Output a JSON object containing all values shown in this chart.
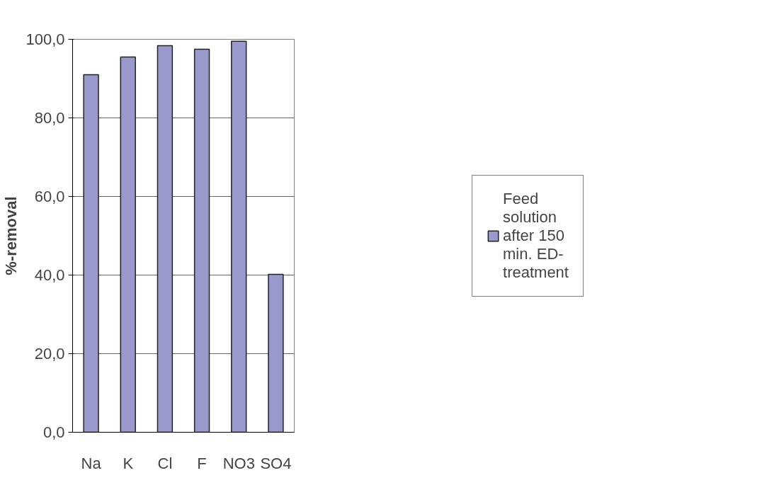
{
  "chart_data": {
    "type": "bar",
    "ylabel": "%-removal",
    "categories": [
      "Na",
      "K",
      "Cl",
      "F",
      "NO3",
      "SO4"
    ],
    "series": [
      {
        "name": "Feed solution after 150 min. ED-treatment",
        "color": "#9999cc",
        "values": [
          91.0,
          95.5,
          98.4,
          97.5,
          99.5,
          40.2
        ]
      }
    ],
    "ylim": [
      0,
      100
    ],
    "yticks": [
      {
        "value": 0,
        "label": "0,0"
      },
      {
        "value": 20,
        "label": "20,0"
      },
      {
        "value": 40,
        "label": "40,0"
      },
      {
        "value": 60,
        "label": "60,0"
      },
      {
        "value": 80,
        "label": "80,0"
      },
      {
        "value": 100,
        "label": "100,0"
      }
    ],
    "grid": "y",
    "legend": "right"
  }
}
